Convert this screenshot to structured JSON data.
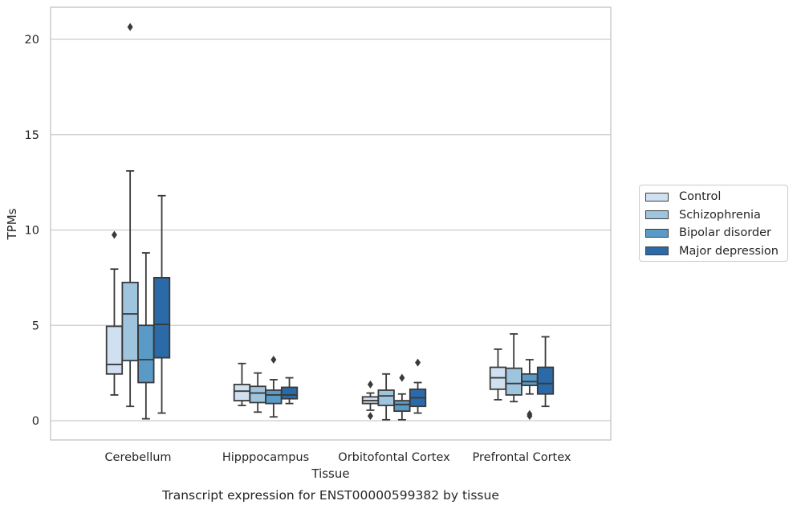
{
  "chart_data": {
    "type": "box",
    "title": "Transcript expression for ENST00000599382 by tissue",
    "xlabel": "Tissue",
    "ylabel": "TPMs",
    "ylim": [
      -1,
      21.7
    ],
    "yticks": [
      0,
      5,
      10,
      15,
      20
    ],
    "grid": true,
    "legend_position": "right",
    "categories": [
      "Cerebellum",
      "Hipppocampus",
      "Orbitofontal Cortex",
      "Prefrontal Cortex"
    ],
    "series": [
      {
        "name": "Control",
        "color": "#d0e0f0",
        "boxes": [
          {
            "whislo": 1.35,
            "q1": 2.45,
            "med": 2.95,
            "q3": 4.95,
            "whishi": 7.95,
            "fliers": [
              9.75
            ]
          },
          {
            "whislo": 0.8,
            "q1": 1.05,
            "med": 1.55,
            "q3": 1.9,
            "whishi": 3.0,
            "fliers": []
          },
          {
            "whislo": 0.55,
            "q1": 0.9,
            "med": 1.05,
            "q3": 1.25,
            "whishi": 1.45,
            "fliers": [
              1.9,
              0.25
            ]
          },
          {
            "whislo": 1.1,
            "q1": 1.65,
            "med": 2.25,
            "q3": 2.8,
            "whishi": 3.75,
            "fliers": []
          }
        ]
      },
      {
        "name": "Schizophrenia",
        "color": "#9fc4dd",
        "boxes": [
          {
            "whislo": 0.75,
            "q1": 3.15,
            "med": 5.6,
            "q3": 7.25,
            "whishi": 13.1,
            "fliers": [
              20.65
            ]
          },
          {
            "whislo": 0.45,
            "q1": 0.95,
            "med": 1.45,
            "q3": 1.8,
            "whishi": 2.5,
            "fliers": []
          },
          {
            "whislo": 0.05,
            "q1": 0.8,
            "med": 1.3,
            "q3": 1.6,
            "whishi": 2.45,
            "fliers": []
          },
          {
            "whislo": 1.0,
            "q1": 1.35,
            "med": 1.95,
            "q3": 2.75,
            "whishi": 4.55,
            "fliers": []
          }
        ]
      },
      {
        "name": "Bipolar disorder",
        "color": "#5a9ac6",
        "boxes": [
          {
            "whislo": 0.1,
            "q1": 2.0,
            "med": 3.2,
            "q3": 5.0,
            "whishi": 8.8,
            "fliers": []
          },
          {
            "whislo": 0.2,
            "q1": 0.9,
            "med": 1.35,
            "q3": 1.6,
            "whishi": 2.15,
            "fliers": [
              3.2
            ]
          },
          {
            "whislo": 0.05,
            "q1": 0.5,
            "med": 0.85,
            "q3": 1.05,
            "whishi": 1.4,
            "fliers": [
              2.25
            ]
          },
          {
            "whislo": 1.4,
            "q1": 1.85,
            "med": 2.05,
            "q3": 2.45,
            "whishi": 3.2,
            "fliers": [
              0.35,
              0.25
            ]
          }
        ]
      },
      {
        "name": "Major depression",
        "color": "#2b6aa8",
        "boxes": [
          {
            "whislo": 0.4,
            "q1": 3.3,
            "med": 5.05,
            "q3": 7.5,
            "whishi": 11.8,
            "fliers": []
          },
          {
            "whislo": 0.9,
            "q1": 1.15,
            "med": 1.35,
            "q3": 1.75,
            "whishi": 2.25,
            "fliers": []
          },
          {
            "whislo": 0.4,
            "q1": 0.75,
            "med": 1.2,
            "q3": 1.65,
            "whishi": 2.0,
            "fliers": [
              3.05
            ]
          },
          {
            "whislo": 0.75,
            "q1": 1.4,
            "med": 1.95,
            "q3": 2.8,
            "whishi": 4.4,
            "fliers": []
          }
        ]
      }
    ]
  }
}
